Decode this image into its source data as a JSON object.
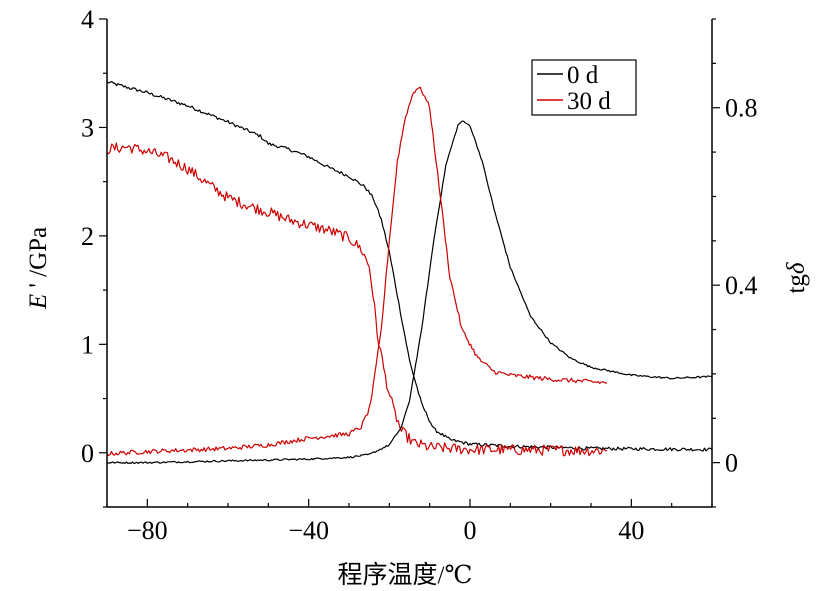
{
  "chart_data": {
    "type": "line",
    "xlabel": "程序温度/℃",
    "ylabel_left": "E ' /GPa",
    "ylabel_left_parts": {
      "symbol": "E",
      "rest": " ' /GPa"
    },
    "ylabel_right": "tgδ",
    "ylabel_right_parts": {
      "prefix": "tg",
      "symbol": "δ"
    },
    "xlim": [
      -90,
      60
    ],
    "ylim_left": [
      -0.5,
      4
    ],
    "ylim_right": [
      -0.1,
      1.0
    ],
    "xticks": [
      -80,
      -40,
      0,
      40
    ],
    "xtick_labels": [
      "−80",
      "−40",
      "0",
      "40"
    ],
    "yticks_left": [
      0,
      1,
      2,
      3,
      4
    ],
    "yticks_left_labels": [
      "0",
      "1",
      "2",
      "3",
      "4"
    ],
    "yticks_right": [
      0,
      0.4,
      0.8
    ],
    "yticks_right_labels": [
      "0",
      "0.4",
      "0.8"
    ],
    "grid": false,
    "legend_position": "top-right",
    "legend": [
      {
        "label": "0 d",
        "color": "#000000"
      },
      {
        "label": "30 d",
        "color": "#cc0000"
      }
    ],
    "series": [
      {
        "name": "0 d",
        "axis": "left",
        "color": "#000000",
        "noise": 0.015,
        "points": [
          [
            -90,
            3.42
          ],
          [
            -88,
            3.4
          ],
          [
            -80,
            3.32
          ],
          [
            -70,
            3.2
          ],
          [
            -60,
            3.05
          ],
          [
            -52,
            2.92
          ],
          [
            -50,
            2.85
          ],
          [
            -45,
            2.8
          ],
          [
            -40,
            2.73
          ],
          [
            -35,
            2.63
          ],
          [
            -30,
            2.55
          ],
          [
            -26,
            2.45
          ],
          [
            -24,
            2.35
          ],
          [
            -22,
            2.15
          ],
          [
            -20,
            1.85
          ],
          [
            -18,
            1.45
          ],
          [
            -15,
            0.85
          ],
          [
            -12,
            0.45
          ],
          [
            -9,
            0.22
          ],
          [
            -5,
            0.12
          ],
          [
            0,
            0.08
          ],
          [
            10,
            0.06
          ],
          [
            30,
            0.04
          ],
          [
            60,
            0.03
          ]
        ]
      },
      {
        "name": "30 d",
        "axis": "left",
        "color": "#cc0000",
        "noise": 0.05,
        "points": [
          [
            -90,
            2.8
          ],
          [
            -85,
            2.82
          ],
          [
            -80,
            2.78
          ],
          [
            -75,
            2.72
          ],
          [
            -70,
            2.62
          ],
          [
            -65,
            2.48
          ],
          [
            -60,
            2.35
          ],
          [
            -55,
            2.28
          ],
          [
            -50,
            2.22
          ],
          [
            -45,
            2.15
          ],
          [
            -40,
            2.1
          ],
          [
            -35,
            2.05
          ],
          [
            -30,
            1.98
          ],
          [
            -27,
            1.88
          ],
          [
            -25,
            1.72
          ],
          [
            -24,
            1.45
          ],
          [
            -23,
            1.1
          ],
          [
            -21,
            0.7
          ],
          [
            -19,
            0.4
          ],
          [
            -17,
            0.2
          ],
          [
            -14,
            0.09
          ],
          [
            -10,
            0.05
          ],
          [
            0,
            0.03
          ],
          [
            34,
            0.02
          ]
        ]
      },
      {
        "name": "0 d",
        "axis": "right",
        "color": "#000000",
        "noise": 0.002,
        "points": [
          [
            -90,
            0.0
          ],
          [
            -80,
            0.0
          ],
          [
            -60,
            0.004
          ],
          [
            -40,
            0.008
          ],
          [
            -30,
            0.012
          ],
          [
            -25,
            0.018
          ],
          [
            -20,
            0.04
          ],
          [
            -17,
            0.08
          ],
          [
            -15,
            0.14
          ],
          [
            -12,
            0.3
          ],
          [
            -9,
            0.5
          ],
          [
            -6,
            0.67
          ],
          [
            -3,
            0.76
          ],
          [
            -2,
            0.77
          ],
          [
            0,
            0.76
          ],
          [
            3,
            0.68
          ],
          [
            6,
            0.57
          ],
          [
            10,
            0.44
          ],
          [
            15,
            0.33
          ],
          [
            20,
            0.27
          ],
          [
            25,
            0.235
          ],
          [
            30,
            0.215
          ],
          [
            40,
            0.197
          ],
          [
            50,
            0.19
          ],
          [
            60,
            0.194
          ]
        ]
      },
      {
        "name": "30 d",
        "axis": "right",
        "color": "#cc0000",
        "noise": 0.005,
        "points": [
          [
            -90,
            0.02
          ],
          [
            -80,
            0.025
          ],
          [
            -60,
            0.032
          ],
          [
            -50,
            0.04
          ],
          [
            -40,
            0.055
          ],
          [
            -30,
            0.065
          ],
          [
            -27,
            0.08
          ],
          [
            -25,
            0.12
          ],
          [
            -24,
            0.17
          ],
          [
            -22,
            0.3
          ],
          [
            -20,
            0.5
          ],
          [
            -18,
            0.68
          ],
          [
            -16,
            0.78
          ],
          [
            -14,
            0.835
          ],
          [
            -13,
            0.845
          ],
          [
            -12,
            0.84
          ],
          [
            -10,
            0.8
          ],
          [
            -8,
            0.65
          ],
          [
            -5,
            0.42
          ],
          [
            -2,
            0.3
          ],
          [
            2,
            0.235
          ],
          [
            6,
            0.205
          ],
          [
            10,
            0.197
          ],
          [
            20,
            0.188
          ],
          [
            34,
            0.18
          ]
        ]
      }
    ]
  }
}
